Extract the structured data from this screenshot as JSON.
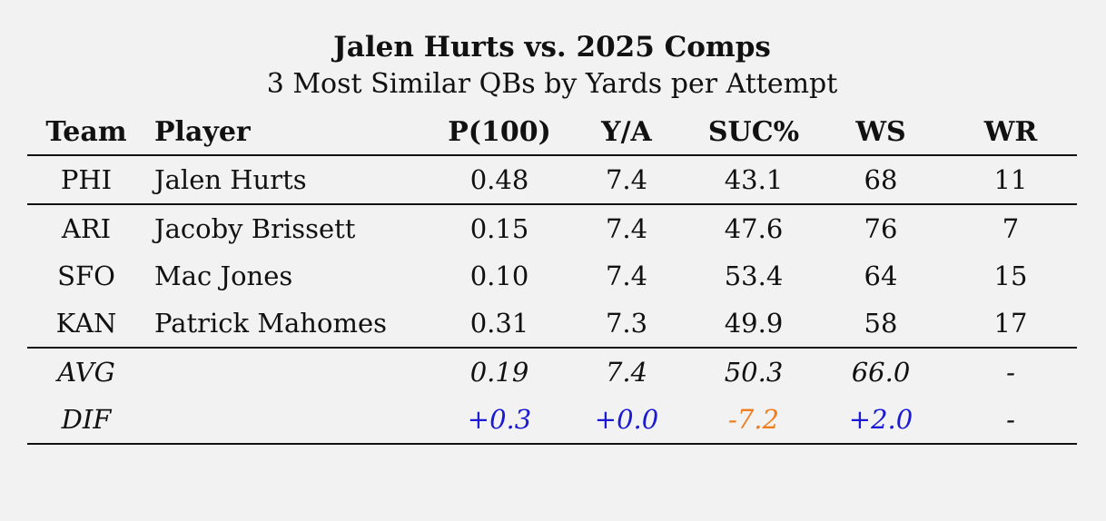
{
  "chart_data": {
    "type": "table",
    "title": "Jalen Hurts vs. 2025 Comps",
    "subtitle": "3 Most Similar QBs by Yards per Attempt",
    "columns": [
      "Team",
      "Player",
      "P(100)",
      "Y/A",
      "SUC%",
      "WS",
      "WR"
    ],
    "subject": {
      "team": "PHI",
      "player": "Jalen Hurts",
      "p100": "0.48",
      "ya": "7.4",
      "suc": "43.1",
      "ws": "68",
      "wr": "11"
    },
    "comps": [
      {
        "team": "ARI",
        "player": "Jacoby Brissett",
        "p100": "0.15",
        "ya": "7.4",
        "suc": "47.6",
        "ws": "76",
        "wr": "7"
      },
      {
        "team": "SFO",
        "player": "Mac Jones",
        "p100": "0.10",
        "ya": "7.4",
        "suc": "53.4",
        "ws": "64",
        "wr": "15"
      },
      {
        "team": "KAN",
        "player": "Patrick Mahomes",
        "p100": "0.31",
        "ya": "7.3",
        "suc": "49.9",
        "ws": "58",
        "wr": "17"
      }
    ],
    "avg": {
      "label": "AVG",
      "p100": "0.19",
      "ya": "7.4",
      "suc": "50.3",
      "ws": "66.0",
      "wr": "-"
    },
    "dif": {
      "label": "DIF",
      "p100": "+0.3",
      "ya": "+0.0",
      "suc": "-7.2",
      "ws": "+2.0",
      "wr": "-"
    }
  },
  "colors": {
    "positive_diff": "#1a1ad6",
    "negative_diff": "#f07d1e",
    "background": "#f2f2f2"
  }
}
